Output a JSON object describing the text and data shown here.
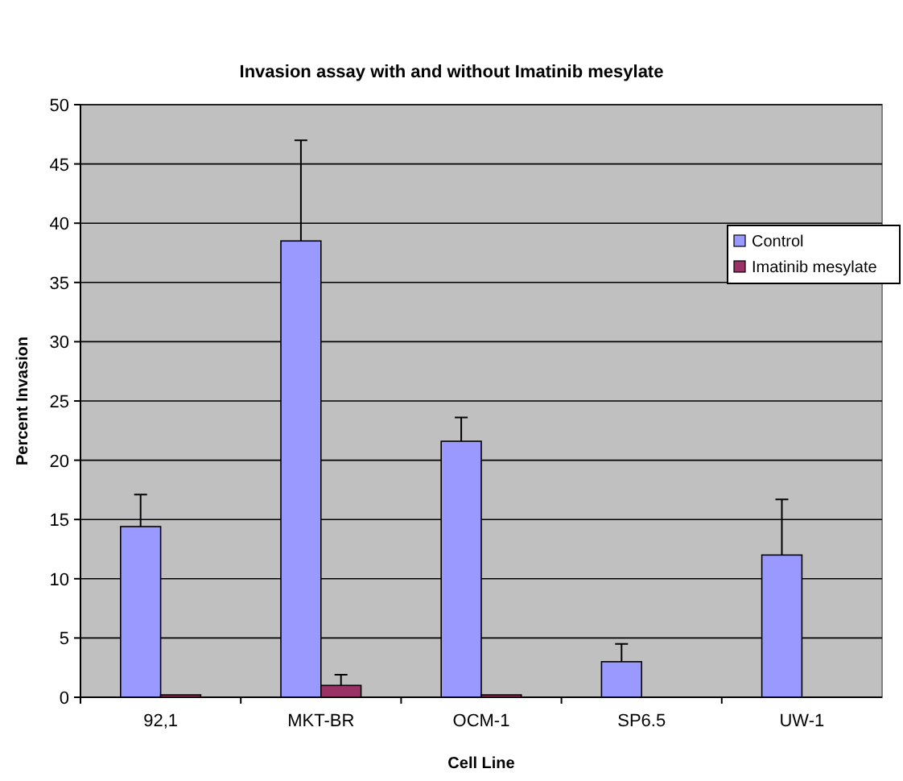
{
  "chart_data": {
    "type": "bar",
    "title": "Invasion assay with and without Imatinib mesylate",
    "xlabel": "Cell Line",
    "ylabel": "Percent Invasion",
    "categories": [
      "92,1",
      "MKT-BR",
      "OCM-1",
      "SP6.5",
      "UW-1"
    ],
    "series": [
      {
        "name": "Control",
        "color": "#9999ff",
        "values": [
          14.4,
          38.5,
          21.6,
          3.0,
          12.0
        ],
        "errors": [
          [
            14.4,
            17.1
          ],
          [
            38.5,
            47.0
          ],
          [
            21.6,
            23.6
          ],
          [
            3.0,
            4.5
          ],
          [
            12.0,
            16.7
          ]
        ]
      },
      {
        "name": "Imatinib mesylate",
        "color": "#993366",
        "values": [
          0.2,
          1.0,
          0.2,
          0,
          0
        ],
        "errors": [
          null,
          [
            1.0,
            1.9
          ],
          null,
          null,
          null
        ]
      }
    ],
    "ylim": [
      0,
      50
    ],
    "yticks": [
      0,
      5,
      10,
      15,
      20,
      25,
      30,
      35,
      40,
      45,
      50
    ],
    "grid": "y",
    "legend": "right"
  }
}
